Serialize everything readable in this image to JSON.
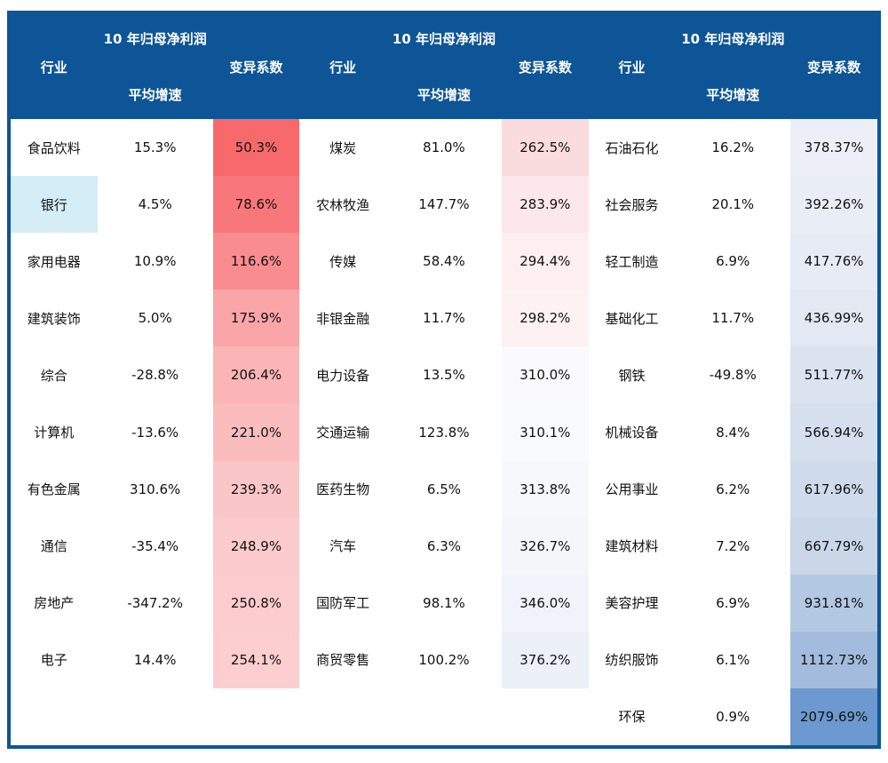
{
  "header": {
    "industry": "行业",
    "growth_top": "10 年归母净利润",
    "growth_bottom": "平均增速",
    "cv": "变异系数"
  },
  "colors": {
    "header_bg": "#0D5596",
    "border": "#0D5596",
    "header_text": "#FFFFFF",
    "body_text": "#111111",
    "bank_highlight": "#D4EDF6"
  },
  "chart_data": {
    "type": "table",
    "title": "",
    "columns": [
      "行业",
      "10 年归母净利润平均增速",
      "变异系数"
    ],
    "legend_note": "变异系数 heatmap: red = low, white = mid, blue = high",
    "groups": [
      {
        "rows": [
          {
            "industry": "食品饮料",
            "growth": "15.3%",
            "cv": "50.3%",
            "cv_color": "#F8696B"
          },
          {
            "industry": "银行",
            "growth": "4.5%",
            "cv": "78.6%",
            "cv_color": "#F8777A",
            "industry_bg": "#D4EDF6"
          },
          {
            "industry": "家用电器",
            "growth": "10.9%",
            "cv": "116.6%",
            "cv_color": "#F98C8F"
          },
          {
            "industry": "建筑装饰",
            "growth": "5.0%",
            "cv": "175.9%",
            "cv_color": "#FAA5A8"
          },
          {
            "industry": "综合",
            "growth": "-28.8%",
            "cv": "206.4%",
            "cv_color": "#FBB5B7"
          },
          {
            "industry": "计算机",
            "growth": "-13.6%",
            "cv": "221.0%",
            "cv_color": "#FBBCBE"
          },
          {
            "industry": "有色金属",
            "growth": "310.6%",
            "cv": "239.3%",
            "cv_color": "#FBC6C8"
          },
          {
            "industry": "通信",
            "growth": "-35.4%",
            "cv": "248.9%",
            "cv_color": "#FCCBCD"
          },
          {
            "industry": "房地产",
            "growth": "-347.2%",
            "cv": "250.8%",
            "cv_color": "#FCCCCE"
          },
          {
            "industry": "电子",
            "growth": "14.4%",
            "cv": "254.1%",
            "cv_color": "#FCCED0"
          },
          {
            "industry": "",
            "growth": "",
            "cv": "",
            "cv_color": ""
          }
        ]
      },
      {
        "rows": [
          {
            "industry": "煤炭",
            "growth": "81.0%",
            "cv": "262.5%",
            "cv_color": "#FBDCDE"
          },
          {
            "industry": "农林牧渔",
            "growth": "147.7%",
            "cv": "283.9%",
            "cv_color": "#FCE8EA"
          },
          {
            "industry": "传媒",
            "growth": "58.4%",
            "cv": "294.4%",
            "cv_color": "#FDEFF0"
          },
          {
            "industry": "非银金融",
            "growth": "11.7%",
            "cv": "298.2%",
            "cv_color": "#FDF1F2"
          },
          {
            "industry": "电力设备",
            "growth": "13.5%",
            "cv": "310.0%",
            "cv_color": "#FAFAFC"
          },
          {
            "industry": "交通运输",
            "growth": "123.8%",
            "cv": "310.1%",
            "cv_color": "#F9FAFC"
          },
          {
            "industry": "医药生物",
            "growth": "6.5%",
            "cv": "313.8%",
            "cv_color": "#F7F8FB"
          },
          {
            "industry": "汽车",
            "growth": "6.3%",
            "cv": "326.7%",
            "cv_color": "#F4F6FA"
          },
          {
            "industry": "国防军工",
            "growth": "98.1%",
            "cv": "346.0%",
            "cv_color": "#F0F3F9"
          },
          {
            "industry": "商贸零售",
            "growth": "100.2%",
            "cv": "376.2%",
            "cv_color": "#ECF0F7"
          },
          {
            "industry": "",
            "growth": "",
            "cv": "",
            "cv_color": ""
          }
        ]
      },
      {
        "rows": [
          {
            "industry": "石油石化",
            "growth": "16.2%",
            "cv": "378.37%",
            "cv_color": "#ECEFF7"
          },
          {
            "industry": "社会服务",
            "growth": "20.1%",
            "cv": "392.26%",
            "cv_color": "#E9EDF6"
          },
          {
            "industry": "轻工制造",
            "growth": "6.9%",
            "cv": "417.76%",
            "cv_color": "#E6EBF5"
          },
          {
            "industry": "基础化工",
            "growth": "11.7%",
            "cv": "436.99%",
            "cv_color": "#E3E8F3"
          },
          {
            "industry": "钢铁",
            "growth": "-49.8%",
            "cv": "511.77%",
            "cv_color": "#DBE3F0"
          },
          {
            "industry": "机械设备",
            "growth": "8.4%",
            "cv": "566.94%",
            "cv_color": "#D5DFEE"
          },
          {
            "industry": "公用事业",
            "growth": "6.2%",
            "cv": "617.96%",
            "cv_color": "#CFDBEB"
          },
          {
            "industry": "建筑材料",
            "growth": "7.2%",
            "cv": "667.79%",
            "cv_color": "#CAD7E9"
          },
          {
            "industry": "美容护理",
            "growth": "6.9%",
            "cv": "931.81%",
            "cv_color": "#B3C8E3"
          },
          {
            "industry": "纺织服饰",
            "growth": "6.1%",
            "cv": "1112.73%",
            "cv_color": "#A3BCDD"
          },
          {
            "industry": "环保",
            "growth": "0.9%",
            "cv": "2079.69%",
            "cv_color": "#6C99CF"
          }
        ]
      }
    ]
  }
}
